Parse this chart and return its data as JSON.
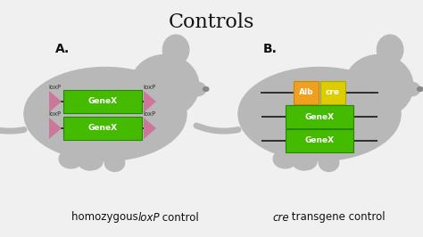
{
  "title": "Controls",
  "title_fontsize": 16,
  "title_font": "serif",
  "bg_color": "#f0f0f0",
  "mouse_color": "#b8b8b8",
  "label_A": "A.",
  "label_B": "B.",
  "green_color": "#44bb00",
  "pink_color": "#cc7799",
  "orange_color": "#f0a020",
  "yellow_color": "#ddcc00",
  "line_color": "#222222",
  "text_color": "#111111",
  "genex_fontsize": 6.5,
  "loxp_fontsize": 5.0,
  "cap_fontsize": 8.5
}
